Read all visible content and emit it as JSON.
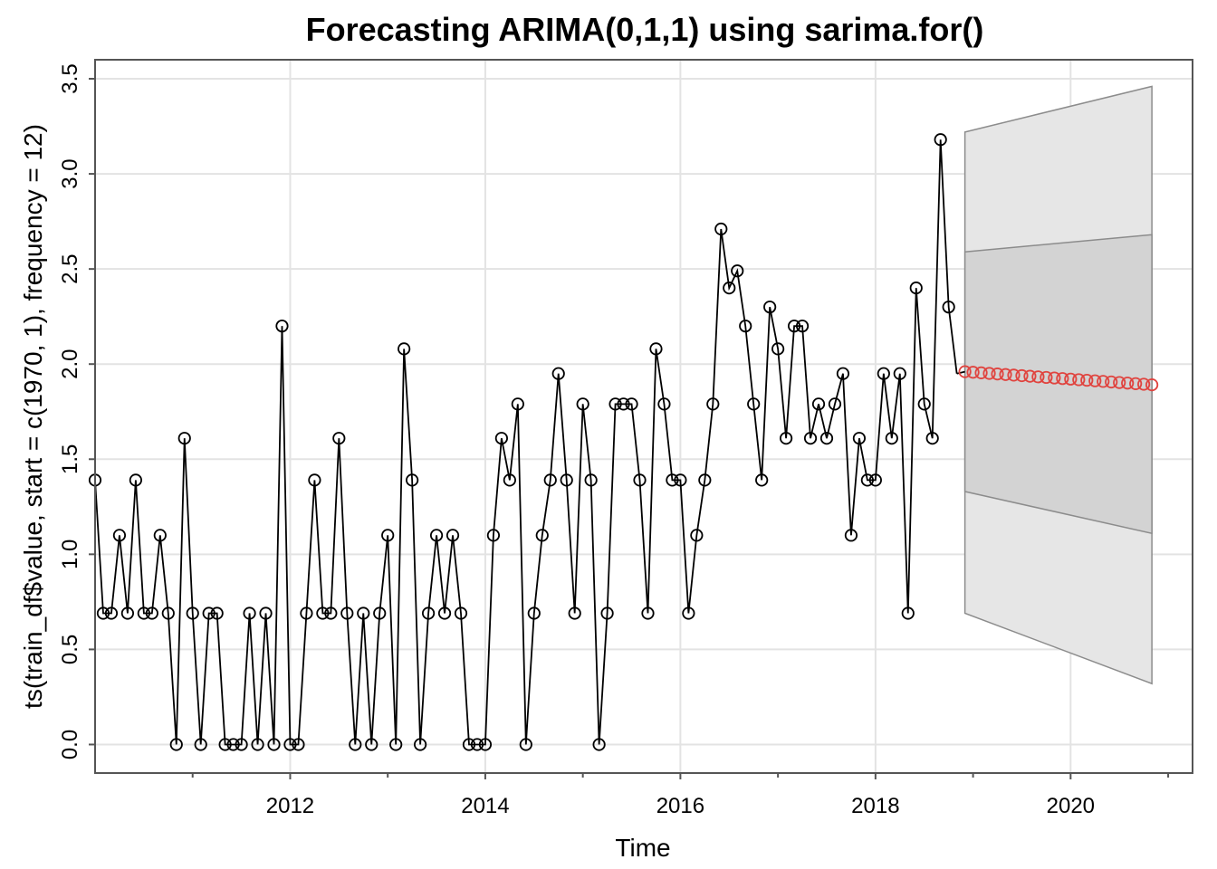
{
  "chart_data": {
    "type": "line",
    "title": "Forecasting ARIMA(0,1,1) using sarima.for()",
    "xlabel": "Time",
    "ylabel": "ts(train_df$value, start = c(1970, 1), frequency = 12)",
    "xlim": [
      2010.0,
      2021.25
    ],
    "ylim": [
      -0.15,
      3.6
    ],
    "x_ticks": [
      2012,
      2014,
      2016,
      2018,
      2020
    ],
    "x_tick_labels": [
      "2012",
      "2014",
      "2016",
      "2018",
      "2020"
    ],
    "x_minor_ticks": [
      2011,
      2013,
      2015,
      2017,
      2019,
      2021
    ],
    "y_ticks": [
      0.0,
      0.5,
      1.0,
      1.5,
      2.0,
      2.5,
      3.0,
      3.5
    ],
    "y_tick_labels": [
      "0.0",
      "0.5",
      "1.0",
      "1.5",
      "2.0",
      "2.5",
      "3.0",
      "3.5"
    ],
    "grid": true,
    "series": [
      {
        "start": 2010.0,
        "step": 0.0833333,
        "color": "#000000",
        "values": [
          1.39,
          0.69,
          0.69,
          1.1,
          0.69,
          1.39,
          0.69,
          0.69,
          1.1,
          0.69,
          0.0,
          1.61,
          0.69,
          0.0,
          0.69,
          0.69,
          0.0,
          0.0,
          0.0,
          0.69,
          0.0,
          0.69,
          0.0,
          2.2,
          0.0,
          0.0,
          0.69,
          1.39,
          0.69,
          0.69,
          1.61,
          0.69,
          0.0,
          0.69,
          0.0,
          0.69,
          1.1,
          0.0,
          2.08,
          1.39,
          0.0,
          0.69,
          1.1,
          0.69,
          1.1,
          0.69,
          0.0,
          0.0,
          0.0,
          1.1,
          1.61,
          1.39,
          1.79,
          0.0,
          0.69,
          1.1,
          1.39,
          1.95,
          1.39,
          0.69,
          1.79,
          1.39,
          0.0,
          0.69,
          1.79,
          1.79,
          1.79,
          1.39,
          0.69,
          2.08,
          1.79,
          1.39,
          1.39,
          0.69,
          1.1,
          1.39,
          1.79,
          2.71,
          2.4,
          2.49,
          2.2,
          1.79,
          1.39,
          2.3,
          2.08,
          1.61,
          2.2,
          2.2,
          1.61,
          1.79,
          1.61,
          1.79,
          1.95,
          1.1,
          1.61,
          1.39,
          1.39,
          1.95,
          1.61,
          1.95,
          0.69,
          2.4,
          1.79,
          1.61,
          3.18,
          2.3,
          1.95
        ]
      },
      {
        "start": 2018.9167,
        "step": 0.0833333,
        "color": "#e0443f",
        "values": [
          1.96,
          1.957,
          1.954,
          1.951,
          1.948,
          1.945,
          1.942,
          1.939,
          1.936,
          1.933,
          1.93,
          1.927,
          1.924,
          1.921,
          1.918,
          1.915,
          1.912,
          1.909,
          1.906,
          1.903,
          1.9,
          1.897,
          1.894,
          1.891
        ]
      }
    ],
    "bands": [
      {
        "level": "outer",
        "fill": "#e6e6e6",
        "x": [
          2018.9167,
          2020.8333
        ],
        "upper": [
          3.22,
          3.46
        ],
        "lower": [
          0.69,
          0.32
        ]
      },
      {
        "level": "inner",
        "fill": "#d3d3d3",
        "x": [
          2018.9167,
          2020.8333
        ],
        "upper": [
          2.59,
          2.68
        ],
        "lower": [
          1.33,
          1.11
        ]
      }
    ]
  }
}
